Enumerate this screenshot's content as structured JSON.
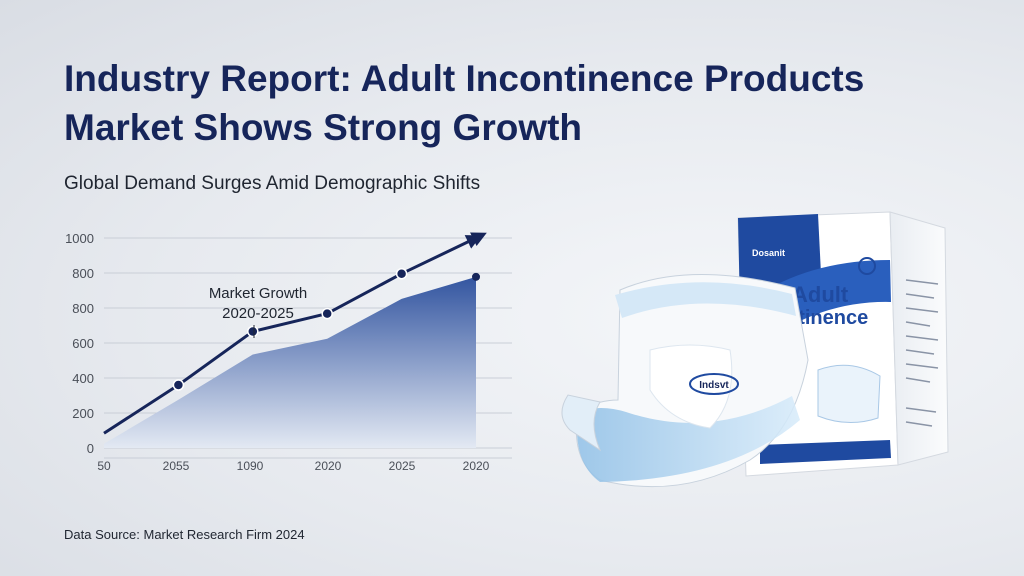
{
  "header": {
    "title_line1": "Industry Report: Adult Incontinence Products",
    "title_line2": "Market Shows Strong Growth",
    "subtitle": "Global Demand Surges Amid Demographic Shifts"
  },
  "footer": {
    "source": "Data Source: Market Research Firm 2024"
  },
  "chart_data": {
    "type": "line",
    "title": "",
    "annotation_line1": "Market Growth",
    "annotation_line2": "2020-2025",
    "categories": [
      "50",
      "2055",
      "1090",
      "2020",
      "2025",
      "2020"
    ],
    "y_ticks": [
      "0",
      "200",
      "400",
      "600",
      "800",
      "800",
      "1000"
    ],
    "ylim": [
      0,
      1000
    ],
    "grid": true,
    "series": [
      {
        "type": "line",
        "values": [
          70,
          300,
          555,
          640,
          830,
          1000
        ],
        "markers": [
          false,
          true,
          true,
          true,
          true,
          false
        ],
        "arrow_end": true
      },
      {
        "type": "area",
        "values": [
          20,
          230,
          445,
          520,
          710,
          815
        ],
        "end_marker": true
      }
    ],
    "colors": {
      "line": "#16255a",
      "area_top": "#3355a0",
      "area_bottom": "#e3e9f3",
      "grid": "#c9ced7"
    }
  },
  "product": {
    "package_brand": "Dosanit",
    "package_title_line1": "Adult",
    "package_title_line2": "ntinence",
    "diaper_logo": "Indsvt"
  }
}
